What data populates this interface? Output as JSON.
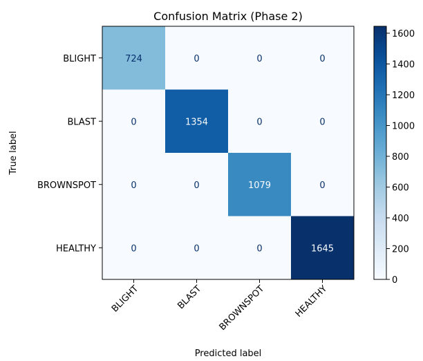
{
  "chart_data": {
    "type": "heatmap",
    "title": "Confusion Matrix (Phase 2)",
    "xlabel": "Predicted label",
    "ylabel": "True label",
    "x_categories": [
      "BLIGHT",
      "BLAST",
      "BROWNSPOT",
      "HEALTHY"
    ],
    "y_categories": [
      "BLIGHT",
      "BLAST",
      "BROWNSPOT",
      "HEALTHY"
    ],
    "values": [
      [
        724,
        0,
        0,
        0
      ],
      [
        0,
        1354,
        0,
        0
      ],
      [
        0,
        0,
        1079,
        0
      ],
      [
        0,
        0,
        0,
        1645
      ]
    ],
    "colormap": "Blues",
    "colorbar": {
      "range": [
        0,
        1645
      ],
      "ticks": [
        0,
        200,
        400,
        600,
        800,
        1000,
        1200,
        1400,
        1600
      ]
    }
  }
}
